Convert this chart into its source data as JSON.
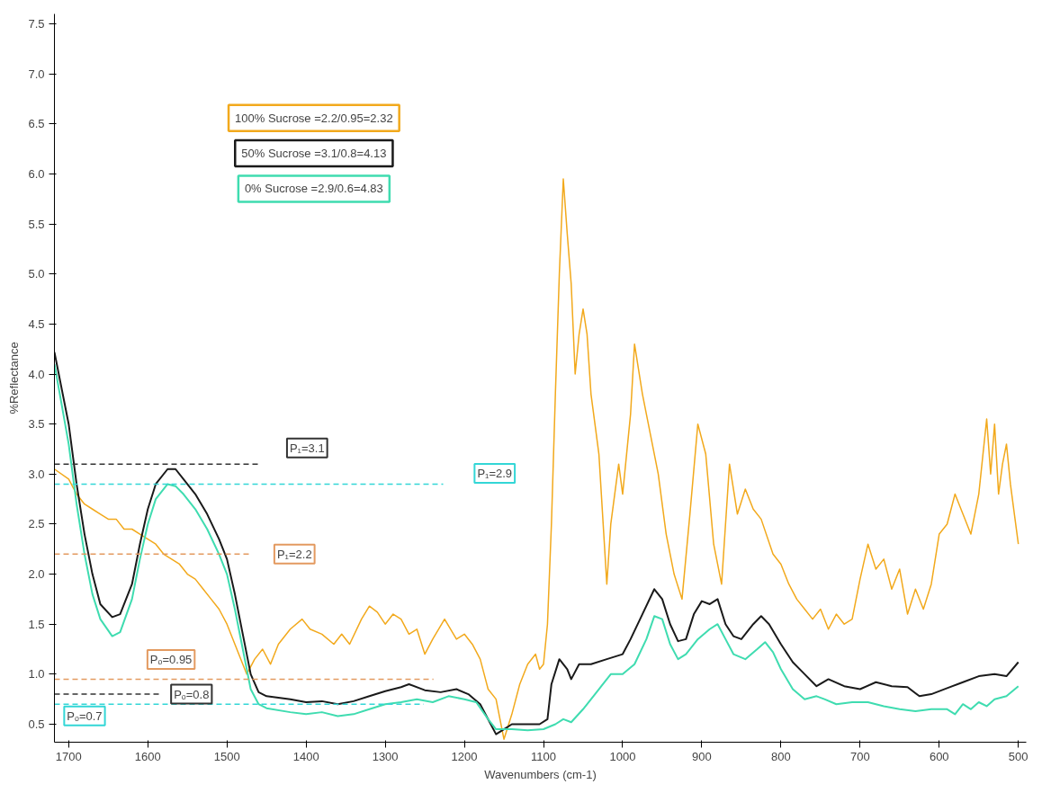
{
  "chart_data": {
    "type": "line",
    "xlabel": "Wavenumbers (cm-1)",
    "ylabel": "%Reflectance",
    "xlim": [
      1718,
      490
    ],
    "ylim": [
      0.32,
      7.6
    ],
    "xticks": [
      1700,
      1600,
      1500,
      1400,
      1300,
      1200,
      1100,
      1000,
      900,
      800,
      700,
      600,
      500
    ],
    "yticks": [
      0.5,
      {
        "value": 1,
        "label": "1.0"
      },
      1.5,
      {
        "value": 2,
        "label": "2.0"
      },
      2.5,
      {
        "value": 3,
        "label": "3.0"
      },
      3.5,
      {
        "value": 4,
        "label": "4.0"
      },
      4.5,
      {
        "value": 5,
        "label": "5.0"
      },
      5.5,
      {
        "value": 6,
        "label": "6.0"
      },
      6.5,
      {
        "value": 7,
        "label": "7.0"
      },
      7.5
    ],
    "grid": false,
    "marker": "none",
    "line_style": "solid",
    "series": [
      {
        "color": "#f2a91c",
        "x": [
          1718,
          1700,
          1690,
          1680,
          1670,
          1660,
          1650,
          1640,
          1630,
          1620,
          1610,
          1600,
          1590,
          1580,
          1570,
          1560,
          1550,
          1540,
          1530,
          1520,
          1510,
          1500,
          1490,
          1480,
          1475,
          1465,
          1455,
          1445,
          1435,
          1420,
          1405,
          1395,
          1380,
          1365,
          1355,
          1345,
          1330,
          1320,
          1310,
          1300,
          1290,
          1280,
          1270,
          1260,
          1250,
          1240,
          1225,
          1210,
          1200,
          1190,
          1180,
          1170,
          1160,
          1150,
          1140,
          1130,
          1120,
          1110,
          1105,
          1100,
          1095,
          1090,
          1085,
          1080,
          1075,
          1070,
          1065,
          1060,
          1055,
          1050,
          1045,
          1040,
          1035,
          1030,
          1020,
          1015,
          1005,
          1000,
          995,
          990,
          985,
          975,
          965,
          955,
          945,
          935,
          925,
          915,
          905,
          895,
          885,
          875,
          865,
          855,
          845,
          835,
          825,
          810,
          800,
          790,
          780,
          770,
          760,
          750,
          740,
          730,
          720,
          710,
          700,
          690,
          680,
          670,
          660,
          650,
          640,
          630,
          620,
          610,
          600,
          590,
          580,
          570,
          560,
          550,
          540,
          535,
          530,
          525,
          520,
          515,
          510,
          505,
          500
        ],
        "values": [
          3.05,
          2.95,
          2.8,
          2.7,
          2.65,
          2.6,
          2.55,
          2.55,
          2.45,
          2.45,
          2.4,
          2.35,
          2.3,
          2.2,
          2.15,
          2.1,
          2.0,
          1.95,
          1.85,
          1.75,
          1.65,
          1.5,
          1.3,
          1.1,
          1.0,
          1.15,
          1.25,
          1.1,
          1.3,
          1.45,
          1.55,
          1.45,
          1.4,
          1.3,
          1.4,
          1.3,
          1.55,
          1.68,
          1.62,
          1.5,
          1.6,
          1.55,
          1.4,
          1.45,
          1.2,
          1.35,
          1.55,
          1.35,
          1.4,
          1.3,
          1.15,
          0.85,
          0.75,
          0.35,
          0.6,
          0.9,
          1.1,
          1.2,
          1.05,
          1.1,
          1.5,
          2.5,
          3.8,
          5.0,
          5.95,
          5.4,
          4.9,
          4.0,
          4.4,
          4.65,
          4.4,
          3.8,
          3.5,
          3.2,
          1.9,
          2.5,
          3.1,
          2.8,
          3.2,
          3.6,
          4.3,
          3.8,
          3.4,
          3.0,
          2.4,
          2.0,
          1.75,
          2.6,
          3.5,
          3.2,
          2.3,
          1.9,
          3.1,
          2.6,
          2.85,
          2.65,
          2.55,
          2.2,
          2.1,
          1.9,
          1.75,
          1.65,
          1.55,
          1.65,
          1.45,
          1.6,
          1.5,
          1.55,
          1.95,
          2.3,
          2.05,
          2.15,
          1.85,
          2.05,
          1.6,
          1.85,
          1.65,
          1.9,
          2.4,
          2.5,
          2.8,
          2.6,
          2.4,
          2.8,
          3.55,
          3.0,
          3.5,
          2.8,
          3.1,
          3.3,
          2.9,
          2.6,
          2.3
        ]
      },
      {
        "color": "#1a1a1a",
        "x": [
          1718,
          1700,
          1690,
          1680,
          1670,
          1660,
          1645,
          1635,
          1620,
          1610,
          1600,
          1590,
          1575,
          1565,
          1555,
          1540,
          1525,
          1510,
          1500,
          1490,
          1480,
          1470,
          1460,
          1450,
          1420,
          1400,
          1380,
          1360,
          1340,
          1320,
          1300,
          1280,
          1270,
          1250,
          1230,
          1210,
          1195,
          1180,
          1170,
          1160,
          1150,
          1140,
          1120,
          1105,
          1095,
          1090,
          1080,
          1070,
          1065,
          1055,
          1040,
          1020,
          1000,
          990,
          975,
          960,
          950,
          940,
          930,
          920,
          910,
          900,
          890,
          880,
          870,
          860,
          850,
          835,
          825,
          815,
          800,
          785,
          770,
          755,
          740,
          720,
          700,
          680,
          660,
          640,
          625,
          610,
          590,
          570,
          550,
          530,
          515,
          500
        ],
        "values": [
          4.22,
          3.5,
          2.9,
          2.4,
          2.0,
          1.7,
          1.57,
          1.6,
          1.9,
          2.3,
          2.65,
          2.9,
          3.05,
          3.05,
          2.95,
          2.8,
          2.6,
          2.35,
          2.15,
          1.8,
          1.4,
          1.0,
          0.82,
          0.78,
          0.75,
          0.72,
          0.73,
          0.7,
          0.73,
          0.78,
          0.83,
          0.87,
          0.9,
          0.84,
          0.82,
          0.85,
          0.8,
          0.7,
          0.55,
          0.4,
          0.45,
          0.5,
          0.5,
          0.5,
          0.55,
          0.9,
          1.15,
          1.05,
          0.95,
          1.1,
          1.1,
          1.15,
          1.2,
          1.35,
          1.6,
          1.85,
          1.75,
          1.5,
          1.33,
          1.35,
          1.6,
          1.73,
          1.7,
          1.75,
          1.5,
          1.38,
          1.35,
          1.5,
          1.58,
          1.5,
          1.3,
          1.12,
          1.0,
          0.88,
          0.95,
          0.88,
          0.85,
          0.92,
          0.88,
          0.87,
          0.78,
          0.8,
          0.86,
          0.92,
          0.98,
          1.0,
          0.98,
          1.12
        ]
      },
      {
        "color": "#3fdcb0",
        "x": [
          1718,
          1700,
          1690,
          1680,
          1670,
          1660,
          1645,
          1635,
          1620,
          1610,
          1600,
          1590,
          1575,
          1565,
          1555,
          1540,
          1525,
          1510,
          1500,
          1490,
          1480,
          1470,
          1460,
          1450,
          1420,
          1400,
          1380,
          1360,
          1340,
          1320,
          1300,
          1280,
          1260,
          1240,
          1220,
          1200,
          1185,
          1170,
          1160,
          1150,
          1140,
          1120,
          1100,
          1085,
          1075,
          1065,
          1050,
          1030,
          1015,
          1000,
          985,
          970,
          960,
          950,
          940,
          930,
          920,
          905,
          890,
          880,
          870,
          860,
          845,
          830,
          820,
          810,
          800,
          785,
          770,
          755,
          745,
          730,
          710,
          690,
          670,
          650,
          630,
          610,
          590,
          580,
          570,
          560,
          550,
          540,
          530,
          515,
          500
        ],
        "values": [
          4.1,
          3.3,
          2.7,
          2.2,
          1.8,
          1.55,
          1.38,
          1.42,
          1.75,
          2.15,
          2.5,
          2.75,
          2.9,
          2.88,
          2.8,
          2.65,
          2.45,
          2.2,
          2.0,
          1.65,
          1.25,
          0.85,
          0.7,
          0.66,
          0.62,
          0.6,
          0.62,
          0.58,
          0.6,
          0.65,
          0.7,
          0.72,
          0.75,
          0.72,
          0.78,
          0.75,
          0.72,
          0.55,
          0.45,
          0.45,
          0.45,
          0.44,
          0.45,
          0.5,
          0.55,
          0.52,
          0.65,
          0.85,
          1.0,
          1.0,
          1.1,
          1.35,
          1.58,
          1.55,
          1.3,
          1.15,
          1.2,
          1.35,
          1.45,
          1.5,
          1.35,
          1.2,
          1.15,
          1.25,
          1.32,
          1.22,
          1.05,
          0.85,
          0.75,
          0.78,
          0.75,
          0.7,
          0.72,
          0.72,
          0.68,
          0.65,
          0.63,
          0.65,
          0.65,
          0.6,
          0.7,
          0.65,
          0.72,
          0.68,
          0.75,
          0.78,
          0.88
        ]
      }
    ],
    "ref_lines": [
      {
        "axis": "y",
        "value": 3.1,
        "label": "P₁=3.1",
        "color": "#333333",
        "line_style": "dashed"
      },
      {
        "axis": "y",
        "value": 2.9,
        "label": "P₁=2.9",
        "color": "#33d6d6",
        "line_style": "dashed"
      },
      {
        "axis": "y",
        "value": 2.2,
        "label": "P₁=2.2",
        "color": "#e39a60",
        "line_style": "dashed"
      },
      {
        "axis": "y",
        "value": 0.95,
        "label": "Pₒ=0.95",
        "color": "#e39a60",
        "line_style": "dashed"
      },
      {
        "axis": "y",
        "value": 0.8,
        "label": "Pₒ=0.8",
        "color": "#333333",
        "line_style": "dashed"
      },
      {
        "axis": "y",
        "value": 0.7,
        "label": "Pₒ=0.7",
        "color": "#33d6d6",
        "line_style": "dashed"
      }
    ],
    "annotations": [
      "100% Sucrose =2.2/0.95=2.32",
      "50% Sucrose =3.1/0.8=4.13",
      "0% Sucrose =2.9/0.6=4.83"
    ]
  }
}
